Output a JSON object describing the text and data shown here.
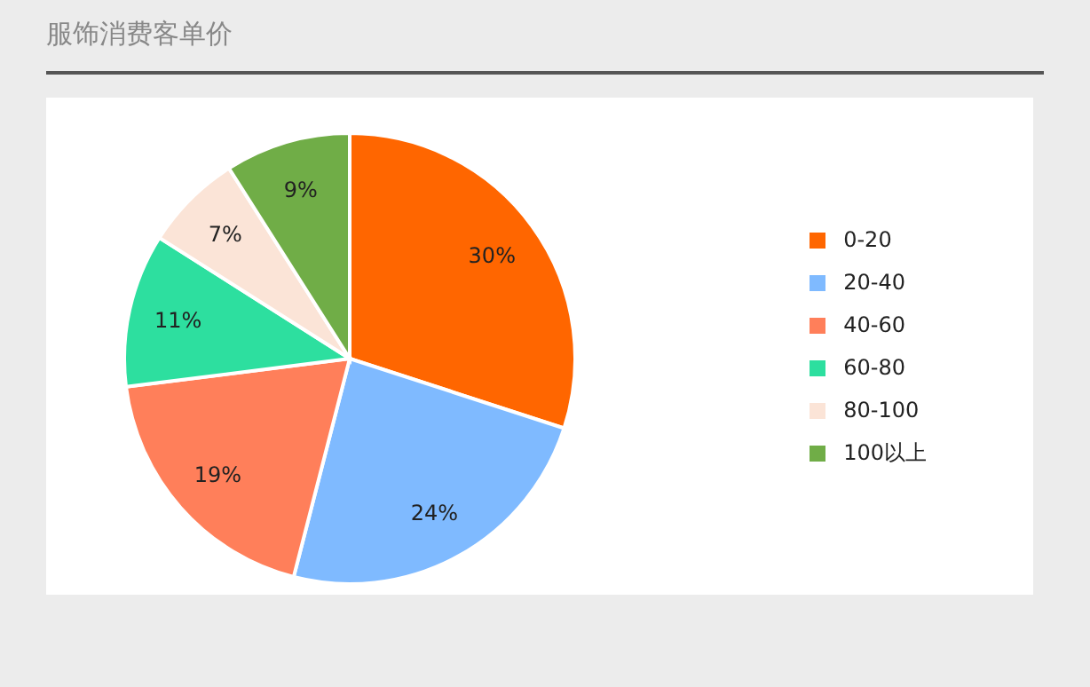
{
  "chart_data": {
    "type": "pie",
    "title": "服饰消费客单价",
    "categories": [
      "0-20",
      "20-40",
      "40-60",
      "60-80",
      "80-100",
      "100以上"
    ],
    "values": [
      30,
      24,
      19,
      11,
      7,
      9
    ],
    "colors": [
      "#ff6600",
      "#7fbaff",
      "#ff7f5a",
      "#2ddf9f",
      "#fbe4d7",
      "#70ad47"
    ],
    "value_labels": [
      "30%",
      "24%",
      "19%",
      "11%",
      "7%",
      "9%"
    ],
    "legend": "right"
  }
}
